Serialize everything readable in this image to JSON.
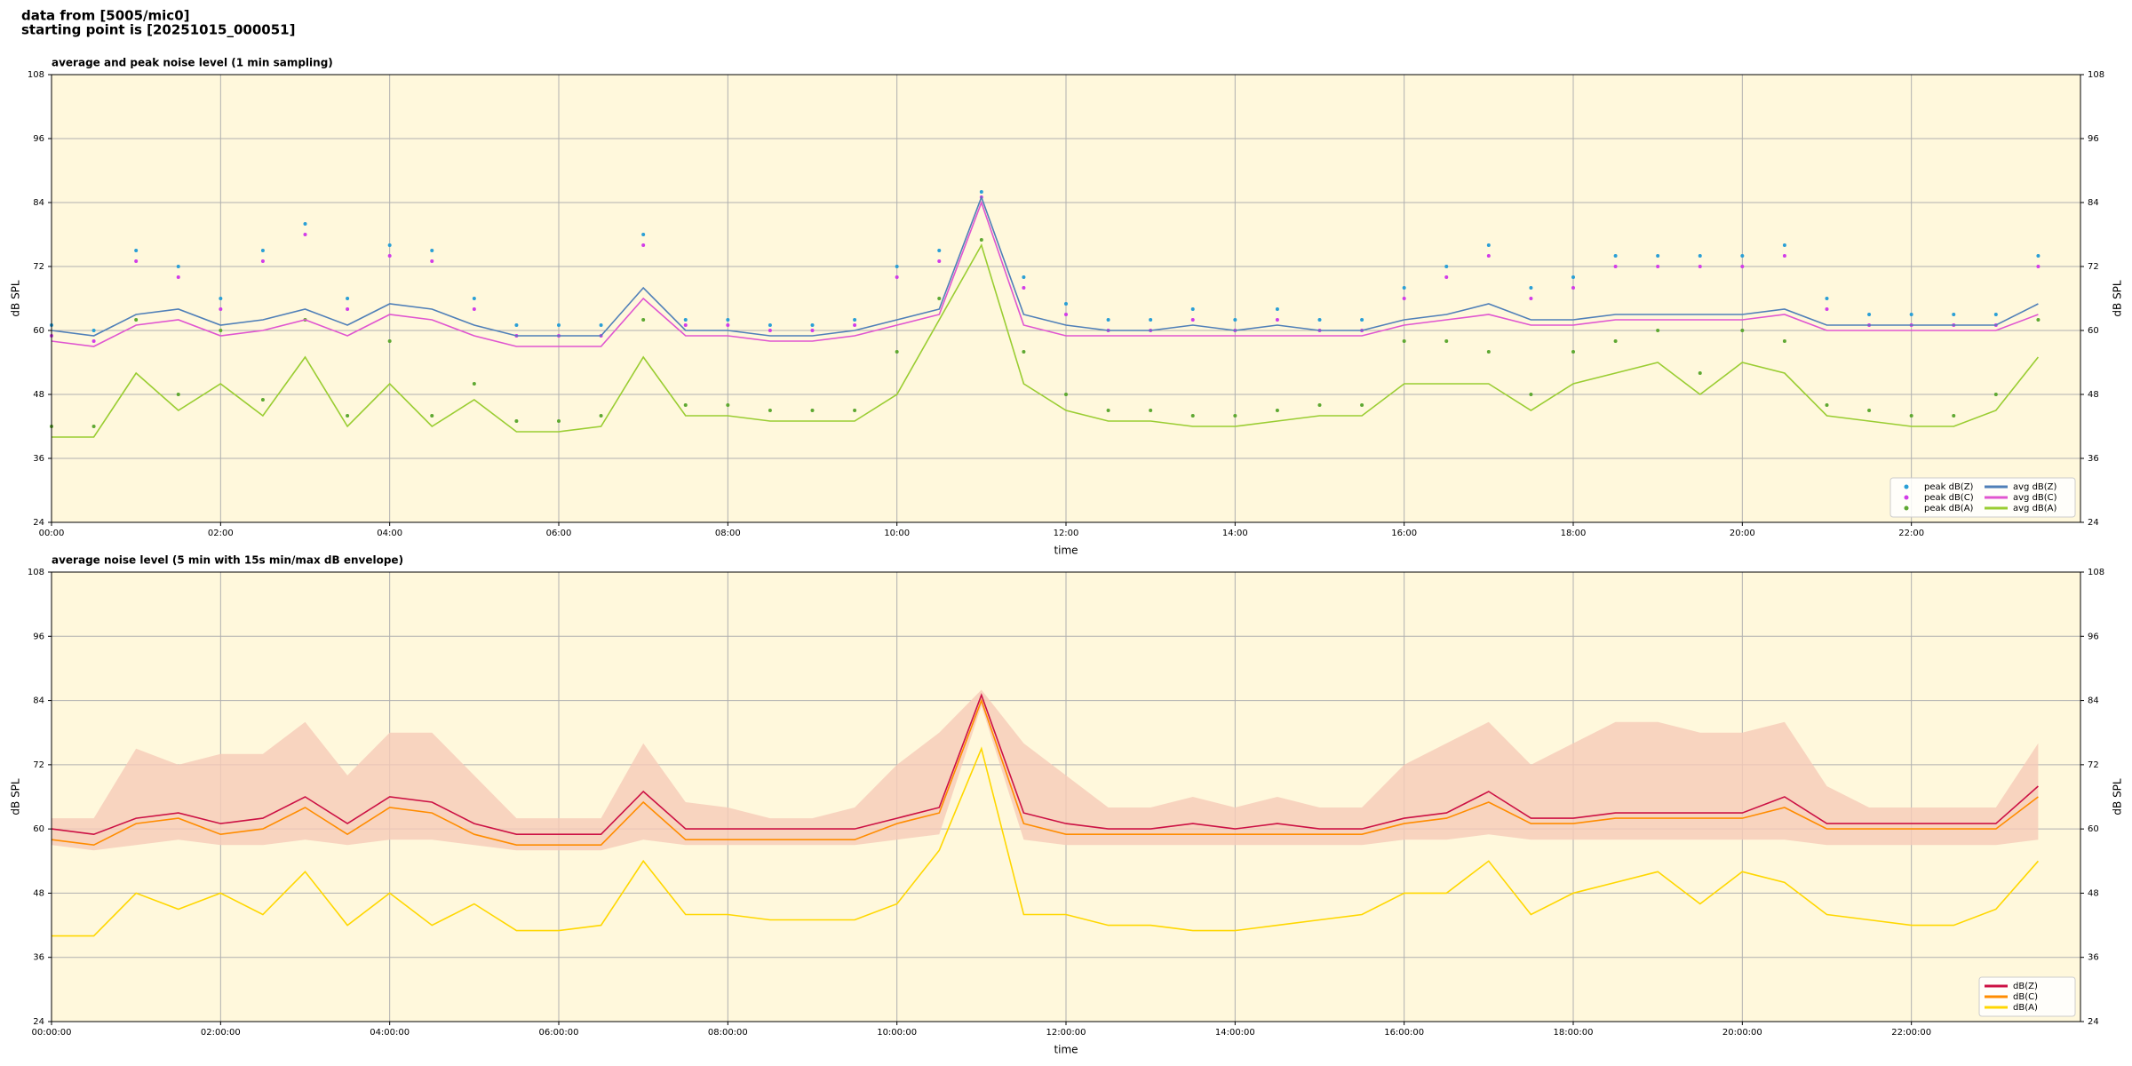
{
  "header": {
    "lines": [
      "data from [5005/mic0]",
      "starting point is [20251015_000051]"
    ]
  },
  "chart_data": [
    {
      "type": "line",
      "title": "average and peak noise level (1 min sampling)",
      "xlabel": "time",
      "ylabel": "dB SPL",
      "background": "#fff8dc",
      "grid": true,
      "legend": "lower right",
      "xlim": [
        0,
        24
      ],
      "ylim": [
        24,
        108
      ],
      "yticks": [
        24,
        36,
        48,
        60,
        72,
        84,
        96,
        108
      ],
      "xticks": [
        {
          "value": 0,
          "label": "00:00"
        },
        {
          "value": 2,
          "label": "02:00"
        },
        {
          "value": 4,
          "label": "04:00"
        },
        {
          "value": 6,
          "label": "06:00"
        },
        {
          "value": 8,
          "label": "08:00"
        },
        {
          "value": 10,
          "label": "10:00"
        },
        {
          "value": 12,
          "label": "12:00"
        },
        {
          "value": 14,
          "label": "14:00"
        },
        {
          "value": 16,
          "label": "16:00"
        },
        {
          "value": 18,
          "label": "18:00"
        },
        {
          "value": 20,
          "label": "20:00"
        },
        {
          "value": 22,
          "label": "22:00"
        }
      ],
      "x": [
        0,
        0.5,
        1,
        1.5,
        2,
        2.5,
        3,
        3.5,
        4,
        4.5,
        5,
        5.5,
        6,
        6.5,
        7,
        7.5,
        8,
        8.5,
        9,
        9.5,
        10,
        10.5,
        11,
        11.5,
        12,
        12.5,
        13,
        13.5,
        14,
        14.5,
        15,
        15.5,
        16,
        16.5,
        17,
        17.5,
        18,
        18.5,
        19,
        19.5,
        20,
        20.5,
        21,
        21.5,
        22,
        22.5,
        23,
        23.5
      ],
      "series": [
        {
          "name": "peak dB(Z)",
          "color": "#2a9fd6",
          "marker": "dot",
          "values": [
            61,
            60,
            75,
            72,
            66,
            75,
            80,
            66,
            76,
            75,
            66,
            61,
            61,
            61,
            78,
            62,
            62,
            61,
            61,
            62,
            72,
            75,
            86,
            70,
            65,
            62,
            62,
            64,
            62,
            64,
            62,
            62,
            68,
            72,
            76,
            68,
            70,
            74,
            74,
            74,
            74,
            76,
            66,
            63,
            63,
            63,
            63,
            74
          ]
        },
        {
          "name": "peak dB(C)",
          "color": "#d23ce8",
          "marker": "dot",
          "values": [
            59,
            58,
            73,
            70,
            64,
            73,
            78,
            64,
            74,
            73,
            64,
            59,
            59,
            59,
            76,
            61,
            61,
            60,
            60,
            61,
            70,
            73,
            85,
            68,
            63,
            60,
            60,
            62,
            60,
            62,
            60,
            60,
            66,
            70,
            74,
            66,
            68,
            72,
            72,
            72,
            72,
            74,
            64,
            61,
            61,
            61,
            61,
            72
          ]
        },
        {
          "name": "peak dB(A)",
          "color": "#5ea832",
          "marker": "dot",
          "values": [
            42,
            42,
            62,
            48,
            60,
            47,
            62,
            44,
            58,
            44,
            50,
            43,
            43,
            44,
            62,
            46,
            46,
            45,
            45,
            45,
            56,
            66,
            77,
            56,
            48,
            45,
            45,
            44,
            44,
            45,
            46,
            46,
            58,
            58,
            56,
            48,
            56,
            58,
            60,
            52,
            60,
            58,
            46,
            45,
            44,
            44,
            48,
            62
          ]
        },
        {
          "name": "avg dB(Z)",
          "color": "#4f7fb8",
          "values": [
            60,
            59,
            63,
            64,
            61,
            62,
            64,
            61,
            65,
            64,
            61,
            59,
            59,
            59,
            68,
            60,
            60,
            59,
            59,
            60,
            62,
            64,
            85,
            63,
            61,
            60,
            60,
            61,
            60,
            61,
            60,
            60,
            62,
            63,
            65,
            62,
            62,
            63,
            63,
            63,
            63,
            64,
            61,
            61,
            61,
            61,
            61,
            65
          ]
        },
        {
          "name": "avg dB(C)",
          "color": "#e055d0",
          "values": [
            58,
            57,
            61,
            62,
            59,
            60,
            62,
            59,
            63,
            62,
            59,
            57,
            57,
            57,
            66,
            59,
            59,
            58,
            58,
            59,
            61,
            63,
            84,
            61,
            59,
            59,
            59,
            59,
            59,
            59,
            59,
            59,
            61,
            62,
            63,
            61,
            61,
            62,
            62,
            62,
            62,
            63,
            60,
            60,
            60,
            60,
            60,
            63
          ]
        },
        {
          "name": "avg dB(A)",
          "color": "#9acd32",
          "values": [
            40,
            40,
            52,
            45,
            50,
            44,
            55,
            42,
            50,
            42,
            47,
            41,
            41,
            42,
            55,
            44,
            44,
            43,
            43,
            43,
            48,
            62,
            76,
            50,
            45,
            43,
            43,
            42,
            42,
            43,
            44,
            44,
            50,
            50,
            50,
            45,
            50,
            52,
            54,
            48,
            54,
            52,
            44,
            43,
            42,
            42,
            45,
            55
          ]
        }
      ]
    },
    {
      "type": "line",
      "title": "average noise level (5 min with 15s min/max dB envelope)",
      "xlabel": "time",
      "ylabel": "dB SPL",
      "background": "#fff8dc",
      "grid": true,
      "legend": "lower right",
      "xlim": [
        0,
        24
      ],
      "ylim": [
        24,
        108
      ],
      "yticks": [
        24,
        36,
        48,
        60,
        72,
        84,
        96,
        108
      ],
      "xticks": [
        {
          "value": 0,
          "label": "00:00:00"
        },
        {
          "value": 2,
          "label": "02:00:00"
        },
        {
          "value": 4,
          "label": "04:00:00"
        },
        {
          "value": 6,
          "label": "06:00:00"
        },
        {
          "value": 8,
          "label": "08:00:00"
        },
        {
          "value": 10,
          "label": "10:00:00"
        },
        {
          "value": 12,
          "label": "12:00:00"
        },
        {
          "value": 14,
          "label": "14:00:00"
        },
        {
          "value": 16,
          "label": "16:00:00"
        },
        {
          "value": 18,
          "label": "18:00:00"
        },
        {
          "value": 20,
          "label": "20:00:00"
        },
        {
          "value": 22,
          "label": "22:00:00"
        }
      ],
      "x": [
        0,
        0.5,
        1,
        1.5,
        2,
        2.5,
        3,
        3.5,
        4,
        4.5,
        5,
        5.5,
        6,
        6.5,
        7,
        7.5,
        8,
        8.5,
        9,
        9.5,
        10,
        10.5,
        11,
        11.5,
        12,
        12.5,
        13,
        13.5,
        14,
        14.5,
        15,
        15.5,
        16,
        16.5,
        17,
        17.5,
        18,
        18.5,
        19,
        19.5,
        20,
        20.5,
        21,
        21.5,
        22,
        22.5,
        23,
        23.5
      ],
      "envelope": {
        "color": "#f6cbb8",
        "max": [
          62,
          62,
          75,
          72,
          74,
          74,
          80,
          70,
          78,
          78,
          70,
          62,
          62,
          62,
          76,
          65,
          64,
          62,
          62,
          64,
          72,
          78,
          86,
          76,
          70,
          64,
          64,
          66,
          64,
          66,
          64,
          64,
          72,
          76,
          80,
          72,
          76,
          80,
          80,
          78,
          78,
          80,
          68,
          64,
          64,
          64,
          64,
          76
        ],
        "min": [
          57,
          56,
          57,
          58,
          57,
          57,
          58,
          57,
          58,
          58,
          57,
          56,
          56,
          56,
          58,
          57,
          57,
          57,
          57,
          57,
          58,
          59,
          83,
          58,
          57,
          57,
          57,
          57,
          57,
          57,
          57,
          57,
          58,
          58,
          59,
          58,
          58,
          58,
          58,
          58,
          58,
          58,
          57,
          57,
          57,
          57,
          57,
          58
        ]
      },
      "series": [
        {
          "name": "dB(Z)",
          "color": "#cc1144",
          "values": [
            60,
            59,
            62,
            63,
            61,
            62,
            66,
            61,
            66,
            65,
            61,
            59,
            59,
            59,
            67,
            60,
            60,
            60,
            60,
            60,
            62,
            64,
            85,
            63,
            61,
            60,
            60,
            61,
            60,
            61,
            60,
            60,
            62,
            63,
            67,
            62,
            62,
            63,
            63,
            63,
            63,
            66,
            61,
            61,
            61,
            61,
            61,
            68
          ]
        },
        {
          "name": "dB(C)",
          "color": "#ff8c00",
          "values": [
            58,
            57,
            61,
            62,
            59,
            60,
            64,
            59,
            64,
            63,
            59,
            57,
            57,
            57,
            65,
            58,
            58,
            58,
            58,
            58,
            61,
            63,
            84,
            61,
            59,
            59,
            59,
            59,
            59,
            59,
            59,
            59,
            61,
            62,
            65,
            61,
            61,
            62,
            62,
            62,
            62,
            64,
            60,
            60,
            60,
            60,
            60,
            66
          ]
        },
        {
          "name": "dB(A)",
          "color": "#ffd700",
          "values": [
            40,
            40,
            48,
            45,
            48,
            44,
            52,
            42,
            48,
            42,
            46,
            41,
            41,
            42,
            54,
            44,
            44,
            43,
            43,
            43,
            46,
            56,
            75,
            44,
            44,
            42,
            42,
            41,
            41,
            42,
            43,
            44,
            48,
            48,
            54,
            44,
            48,
            50,
            52,
            46,
            52,
            50,
            44,
            43,
            42,
            42,
            45,
            54
          ]
        }
      ]
    }
  ]
}
